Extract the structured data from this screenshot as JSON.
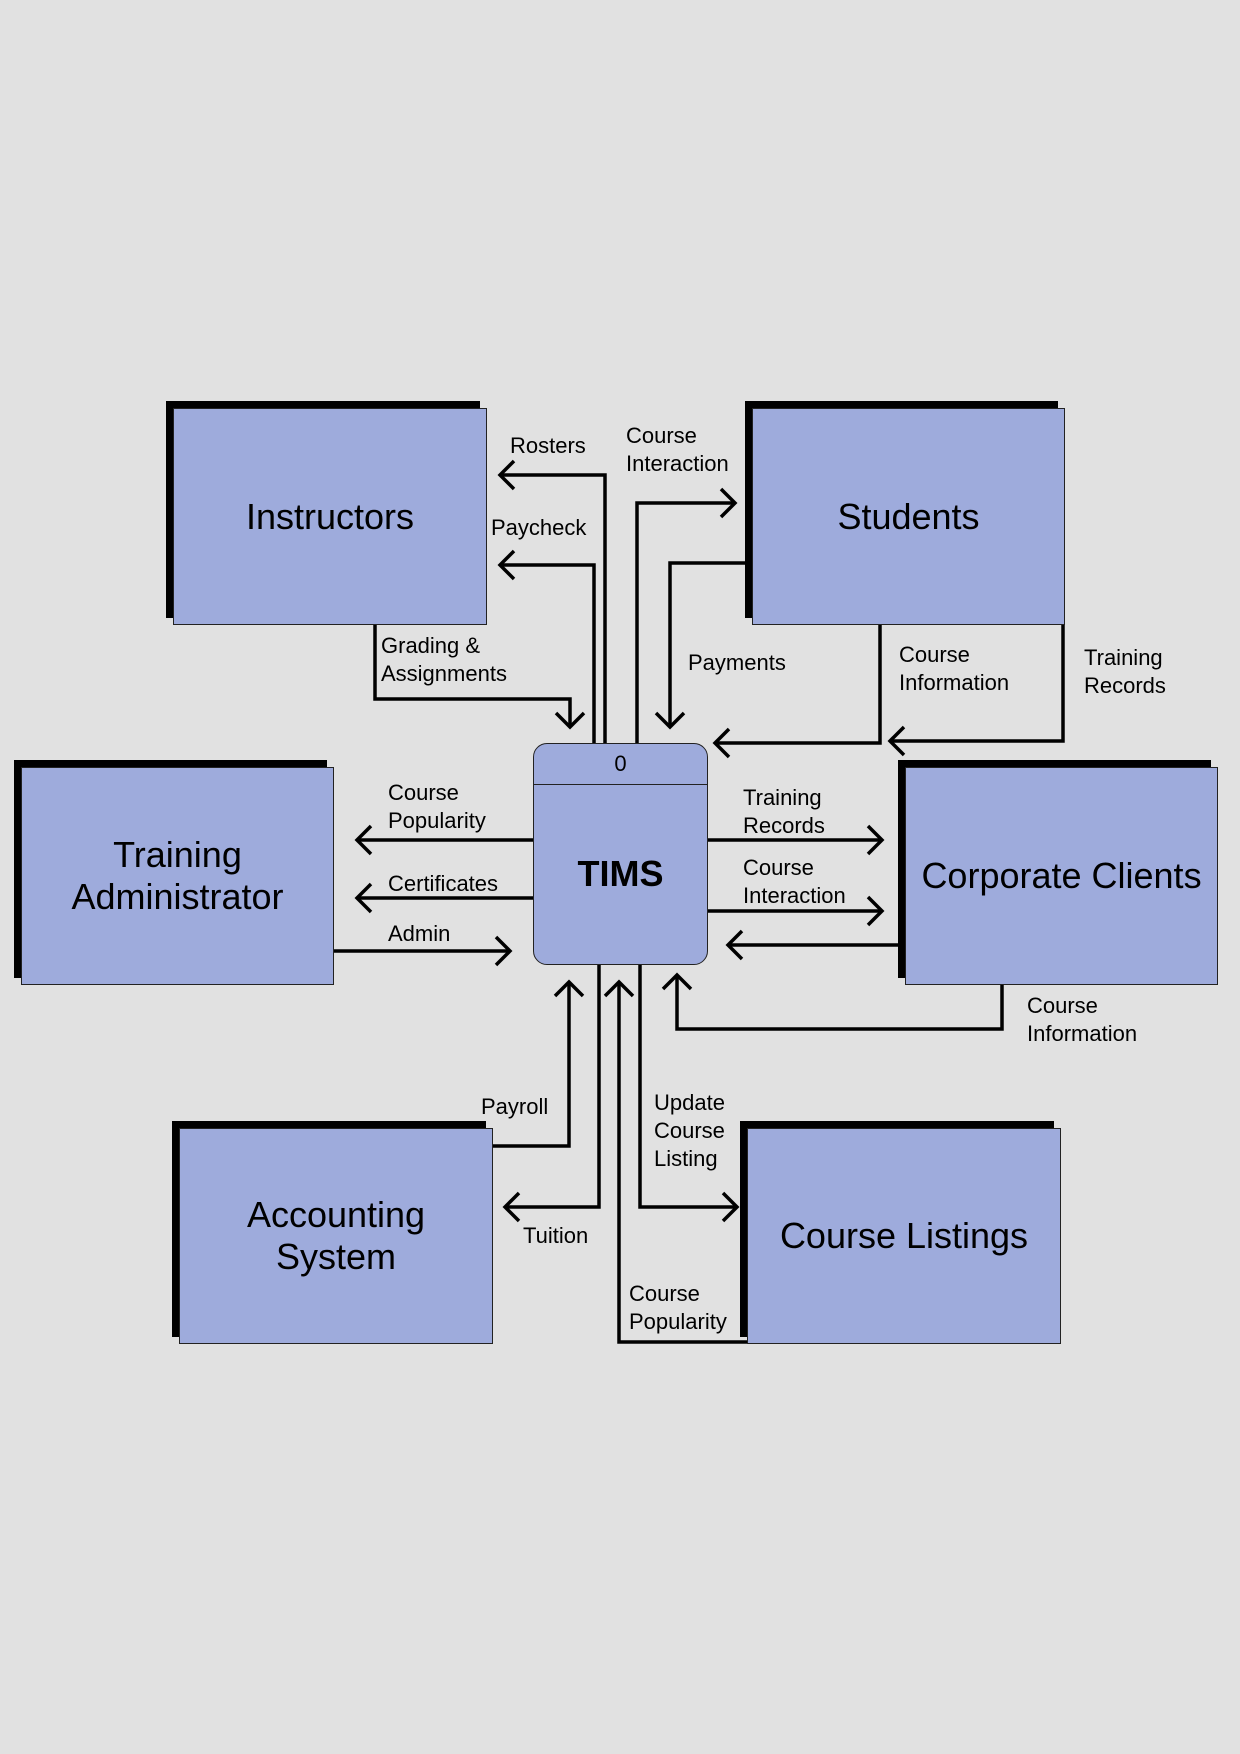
{
  "process": {
    "id": "0",
    "name": "TIMS"
  },
  "entities": {
    "instructors": "Instructors",
    "students": "Students",
    "training_admin": "Training\nAdministrator",
    "corporate_clients": "Corporate Clients",
    "accounting": "Accounting\nSystem",
    "course_listings": "Course Listings"
  },
  "flows": {
    "rosters": "Rosters",
    "paycheck": "Paycheck",
    "grading": "Grading &\nAssignments",
    "course_interaction_students": "Course\nInteraction",
    "payments": "Payments",
    "course_information_students": "Course\nInformation",
    "training_records_students": "Training\nRecords",
    "course_popularity_admin": "Course\nPopularity",
    "certificates": "Certificates",
    "admin": "Admin",
    "training_records_clients": "Training\nRecords",
    "course_interaction_clients": "Course\nInteraction",
    "course_information_clients": "Course\nInformation",
    "payroll": "Payroll",
    "tuition": "Tuition",
    "update_course_listing": "Update\nCourse\nListing",
    "course_popularity_listings": "Course\nPopularity"
  }
}
